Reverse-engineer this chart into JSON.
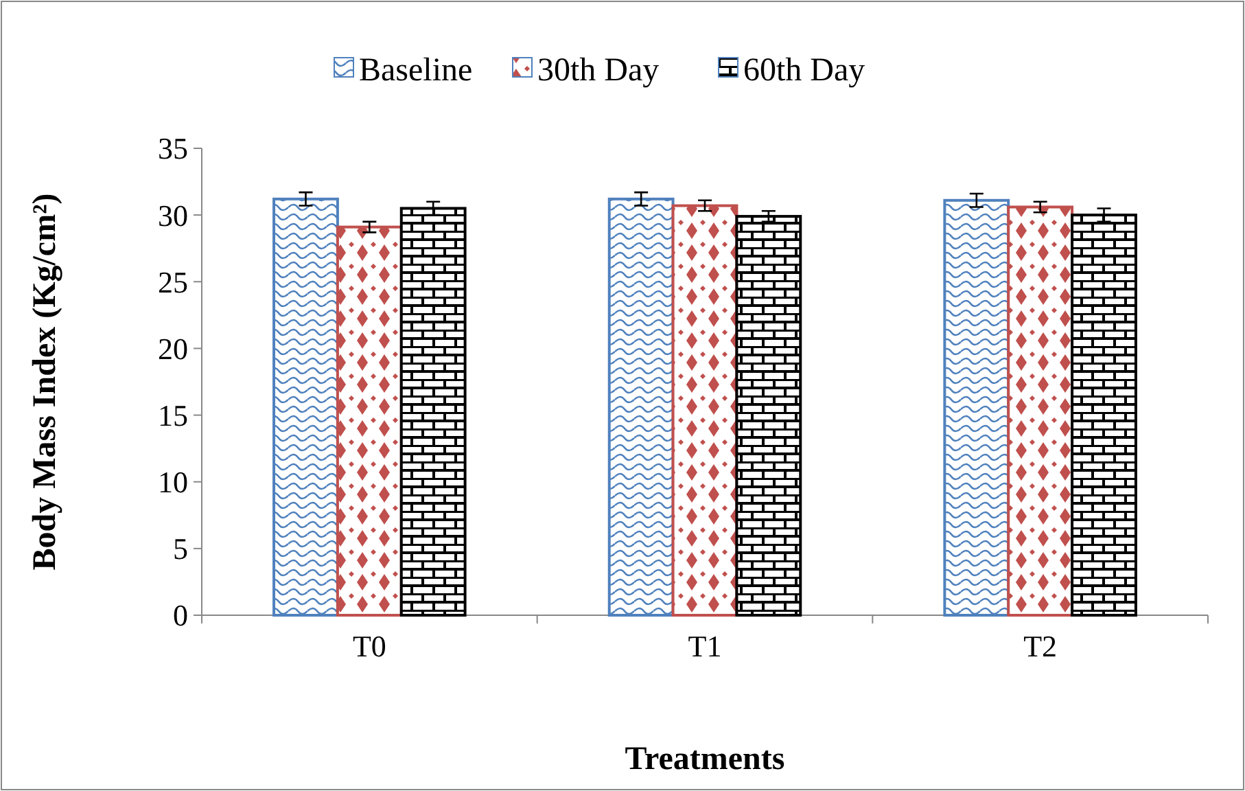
{
  "chart_data": {
    "type": "bar",
    "xlabel": "Treatments",
    "ylabel": "Body Mass Index (Kg/cm²)",
    "categories": [
      "T0",
      "T1",
      "T2"
    ],
    "series": [
      {
        "name": "Baseline",
        "color": "#4f81bd",
        "values": [
          31.2,
          31.2,
          31.1
        ],
        "errors": [
          0.5,
          0.5,
          0.5
        ]
      },
      {
        "name": "30th Day",
        "color": "#c0504d",
        "values": [
          29.1,
          30.7,
          30.6
        ],
        "errors": [
          0.4,
          0.4,
          0.4
        ]
      },
      {
        "name": "60th Day",
        "color": "#000000",
        "values": [
          30.5,
          29.9,
          30.0
        ],
        "errors": [
          0.5,
          0.4,
          0.5
        ]
      }
    ],
    "ylim": [
      0,
      35
    ],
    "yticks": [
      0,
      5,
      10,
      15,
      20,
      25,
      30,
      35
    ],
    "legend": "top"
  }
}
